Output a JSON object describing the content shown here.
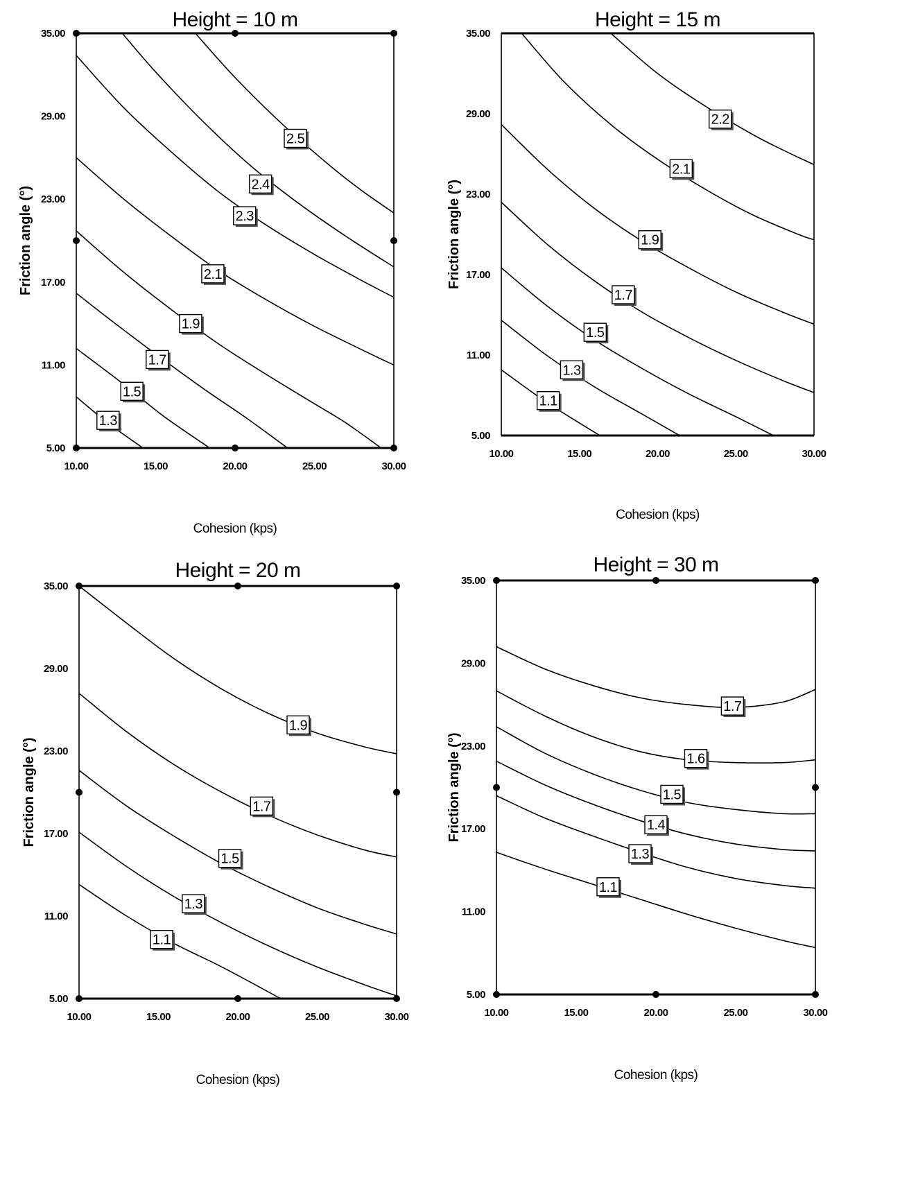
{
  "chart_data": [
    {
      "type": "contour",
      "title": "Height = 10 m",
      "xlabel": "Cohesion (kps)",
      "ylabel": "Friction angle (°)",
      "xlim": [
        10,
        30
      ],
      "ylim": [
        5,
        35
      ],
      "x_ticks": [
        "10.00",
        "15.00",
        "20.00",
        "25.00",
        "30.00"
      ],
      "y_ticks": [
        "5.00",
        "11.00",
        "17.00",
        "23.00",
        "29.00",
        "35.00"
      ],
      "design_points": [
        [
          10,
          35
        ],
        [
          20,
          35
        ],
        [
          30,
          35
        ],
        [
          10,
          20
        ],
        [
          30,
          20
        ],
        [
          10,
          5
        ],
        [
          20,
          5
        ],
        [
          30,
          5
        ]
      ],
      "contours": [
        {
          "label": "1.3",
          "label_at": [
            12.0,
            7.0
          ],
          "points": [
            [
              10,
              8.7
            ],
            [
              12,
              6.8
            ],
            [
              14.2,
              5
            ]
          ]
        },
        {
          "label": "1.5",
          "label_at": [
            13.5,
            9.1
          ],
          "points": [
            [
              10,
              12.2
            ],
            [
              13,
              9.6
            ],
            [
              15.5,
              7.3
            ],
            [
              18.4,
              5
            ]
          ]
        },
        {
          "label": "1.7",
          "label_at": [
            15.1,
            11.4
          ],
          "points": [
            [
              10,
              16.2
            ],
            [
              12,
              14.4
            ],
            [
              15,
              11.8
            ],
            [
              18,
              9.3
            ],
            [
              20.8,
              7.1
            ],
            [
              23.3,
              5
            ]
          ]
        },
        {
          "label": "1.9",
          "label_at": [
            17.2,
            14.0
          ],
          "points": [
            [
              10,
              20.7
            ],
            [
              13,
              17.7
            ],
            [
              16,
              15.0
            ],
            [
              19,
              12.5
            ],
            [
              22,
              10.3
            ],
            [
              25,
              8.2
            ],
            [
              27,
              6.8
            ],
            [
              29.2,
              5
            ]
          ]
        },
        {
          "label": "2.1",
          "label_at": [
            18.6,
            17.6
          ],
          "points": [
            [
              10,
              26.0
            ],
            [
              13,
              23.0
            ],
            [
              16,
              20.3
            ],
            [
              19,
              17.8
            ],
            [
              22,
              15.7
            ],
            [
              25,
              13.8
            ],
            [
              28,
              12.1
            ],
            [
              30,
              11.0
            ]
          ]
        },
        {
          "label": "2.3",
          "label_at": [
            20.6,
            21.8
          ],
          "points": [
            [
              10,
              33.4
            ],
            [
              13,
              29.6
            ],
            [
              16,
              26.4
            ],
            [
              19,
              23.5
            ],
            [
              22,
              21.1
            ],
            [
              25,
              19.0
            ],
            [
              28,
              17.1
            ],
            [
              30,
              15.9
            ]
          ]
        },
        {
          "label": "2.4",
          "label_at": [
            21.6,
            24.1
          ],
          "points": [
            [
              12.9,
              35
            ],
            [
              15,
              32.2
            ],
            [
              18,
              28.6
            ],
            [
              21,
              25.4
            ],
            [
              24,
              22.7
            ],
            [
              27,
              20.3
            ],
            [
              30,
              18.1
            ]
          ]
        },
        {
          "label": "2.5",
          "label_at": [
            23.8,
            27.4
          ],
          "points": [
            [
              17.5,
              35
            ],
            [
              20,
              31.8
            ],
            [
              23,
              28.4
            ],
            [
              26,
              25.4
            ],
            [
              28,
              23.6
            ],
            [
              30,
              22.0
            ]
          ]
        }
      ]
    },
    {
      "type": "contour",
      "title": "Height = 15 m",
      "xlabel": "Cohesion (kps)",
      "ylabel": "Friction angle (°)",
      "xlim": [
        10,
        30
      ],
      "ylim": [
        5,
        35
      ],
      "x_ticks": [
        "10.00",
        "15.00",
        "20.00",
        "25.00",
        "30.00"
      ],
      "y_ticks": [
        "5.00",
        "11.00",
        "17.00",
        "23.00",
        "29.00",
        "35.00"
      ],
      "design_points": [],
      "contours": [
        {
          "label": "1.1",
          "label_at": [
            13.0,
            7.6
          ],
          "points": [
            [
              10,
              9.9
            ],
            [
              13,
              7.4
            ],
            [
              16.3,
              5
            ]
          ]
        },
        {
          "label": "1.3",
          "label_at": [
            14.5,
            9.9
          ],
          "points": [
            [
              10,
              13.6
            ],
            [
              13,
              10.9
            ],
            [
              16,
              8.6
            ],
            [
              19,
              6.6
            ],
            [
              21.4,
              5
            ]
          ]
        },
        {
          "label": "1.5",
          "label_at": [
            16.0,
            12.7
          ],
          "points": [
            [
              10,
              17.5
            ],
            [
              13,
              14.6
            ],
            [
              16,
              12.1
            ],
            [
              19,
              10.0
            ],
            [
              22,
              8.1
            ],
            [
              25,
              6.4
            ],
            [
              27.4,
              5
            ]
          ]
        },
        {
          "label": "1.7",
          "label_at": [
            17.8,
            15.5
          ],
          "points": [
            [
              10,
              22.4
            ],
            [
              13,
              19.2
            ],
            [
              16,
              16.5
            ],
            [
              19,
              14.2
            ],
            [
              22,
              12.3
            ],
            [
              25,
              10.6
            ],
            [
              28,
              9.1
            ],
            [
              30,
              8.2
            ]
          ]
        },
        {
          "label": "1.9",
          "label_at": [
            19.5,
            19.6
          ],
          "points": [
            [
              10,
              28.2
            ],
            [
              13,
              24.8
            ],
            [
              16,
              21.9
            ],
            [
              19,
              19.5
            ],
            [
              22,
              17.5
            ],
            [
              25,
              15.7
            ],
            [
              28,
              14.2
            ],
            [
              30,
              13.3
            ]
          ]
        },
        {
          "label": "2.1",
          "label_at": [
            21.5,
            24.9
          ],
          "points": [
            [
              11.3,
              35
            ],
            [
              14,
              31.4
            ],
            [
              17,
              28.2
            ],
            [
              20,
              25.6
            ],
            [
              23,
              23.4
            ],
            [
              26,
              21.5
            ],
            [
              29,
              20.0
            ],
            [
              30,
              19.6
            ]
          ]
        },
        {
          "label": "2.2",
          "label_at": [
            24.0,
            28.6
          ],
          "points": [
            [
              17.0,
              35
            ],
            [
              20,
              32.0
            ],
            [
              23,
              29.6
            ],
            [
              26,
              27.5
            ],
            [
              28,
              26.3
            ],
            [
              30,
              25.2
            ]
          ]
        }
      ]
    },
    {
      "type": "contour",
      "title": "Height = 20 m",
      "xlabel": "Cohesion (kps)",
      "ylabel": "Friction angle (°)",
      "xlim": [
        10,
        30
      ],
      "ylim": [
        5,
        35
      ],
      "x_ticks": [
        "10.00",
        "15.00",
        "20.00",
        "25.00",
        "30.00"
      ],
      "y_ticks": [
        "5.00",
        "11.00",
        "17.00",
        "23.00",
        "29.00",
        "35.00"
      ],
      "design_points": [
        [
          10,
          35
        ],
        [
          20,
          35
        ],
        [
          30,
          35
        ],
        [
          10,
          20
        ],
        [
          30,
          20
        ],
        [
          10,
          5
        ],
        [
          20,
          5
        ],
        [
          30,
          5
        ]
      ],
      "contours": [
        {
          "label": "1.1",
          "label_at": [
            15.2,
            9.3
          ],
          "points": [
            [
              10,
              13.3
            ],
            [
              13,
              11.0
            ],
            [
              16,
              9.0
            ],
            [
              19,
              7.3
            ],
            [
              22.7,
              5
            ]
          ]
        },
        {
          "label": "1.3",
          "label_at": [
            17.2,
            11.9
          ],
          "points": [
            [
              10,
              17.1
            ],
            [
              13,
              14.6
            ],
            [
              16,
              12.4
            ],
            [
              19,
              10.5
            ],
            [
              22,
              8.8
            ],
            [
              25,
              7.3
            ],
            [
              28,
              6.0
            ],
            [
              30,
              5.2
            ]
          ]
        },
        {
          "label": "1.5",
          "label_at": [
            19.5,
            15.2
          ],
          "points": [
            [
              10,
              21.6
            ],
            [
              13,
              19.0
            ],
            [
              16,
              16.8
            ],
            [
              19,
              14.8
            ],
            [
              22,
              13.1
            ],
            [
              25,
              11.6
            ],
            [
              28,
              10.4
            ],
            [
              30,
              9.7
            ]
          ]
        },
        {
          "label": "1.7",
          "label_at": [
            21.5,
            19.0
          ],
          "points": [
            [
              10,
              27.2
            ],
            [
              13,
              24.4
            ],
            [
              16,
              22.0
            ],
            [
              19,
              20.0
            ],
            [
              22,
              18.3
            ],
            [
              25,
              16.9
            ],
            [
              28,
              15.8
            ],
            [
              30,
              15.3
            ]
          ]
        },
        {
          "label": "1.9",
          "label_at": [
            23.8,
            24.9
          ],
          "points": [
            [
              10,
              35
            ],
            [
              13,
              32.3
            ],
            [
              16,
              29.7
            ],
            [
              19,
              27.5
            ],
            [
              22,
              25.7
            ],
            [
              25,
              24.3
            ],
            [
              28,
              23.3
            ],
            [
              30,
              22.8
            ]
          ]
        }
      ]
    },
    {
      "type": "contour",
      "title": "Height = 30 m",
      "xlabel": "Cohesion (kps)",
      "ylabel": "Friction angle (°)",
      "xlim": [
        10,
        30
      ],
      "ylim": [
        5,
        35
      ],
      "x_ticks": [
        "10.00",
        "15.00",
        "20.00",
        "25.00",
        "30.00"
      ],
      "y_ticks": [
        "5.00",
        "11.00",
        "17.00",
        "23.00",
        "29.00",
        "35.00"
      ],
      "design_points": [
        [
          10,
          35
        ],
        [
          20,
          35
        ],
        [
          30,
          35
        ],
        [
          10,
          20
        ],
        [
          30,
          20
        ],
        [
          10,
          5
        ],
        [
          20,
          5
        ],
        [
          30,
          5
        ]
      ],
      "contours": [
        {
          "label": "1.1",
          "label_at": [
            17.0,
            12.8
          ],
          "points": [
            [
              10,
              15.3
            ],
            [
              13,
              14.1
            ],
            [
              16,
              13.0
            ],
            [
              19,
              11.9
            ],
            [
              22,
              10.8
            ],
            [
              25,
              9.8
            ],
            [
              28,
              8.9
            ],
            [
              30,
              8.4
            ]
          ]
        },
        {
          "label": "1.3",
          "label_at": [
            19.0,
            15.2
          ],
          "points": [
            [
              10,
              19.4
            ],
            [
              13,
              17.8
            ],
            [
              16,
              16.5
            ],
            [
              19,
              15.3
            ],
            [
              22,
              14.2
            ],
            [
              25,
              13.4
            ],
            [
              28,
              12.9
            ],
            [
              30,
              12.7
            ]
          ]
        },
        {
          "label": "1.4",
          "label_at": [
            20.0,
            17.3
          ],
          "points": [
            [
              10,
              21.9
            ],
            [
              13,
              20.2
            ],
            [
              16,
              18.8
            ],
            [
              19,
              17.6
            ],
            [
              22,
              16.6
            ],
            [
              25,
              15.9
            ],
            [
              28,
              15.5
            ],
            [
              30,
              15.4
            ]
          ]
        },
        {
          "label": "1.5",
          "label_at": [
            21.0,
            19.5
          ],
          "points": [
            [
              10,
              24.4
            ],
            [
              13,
              22.5
            ],
            [
              16,
              21.0
            ],
            [
              19,
              19.8
            ],
            [
              22,
              18.9
            ],
            [
              25,
              18.4
            ],
            [
              28,
              18.1
            ],
            [
              30,
              18.1
            ]
          ]
        },
        {
          "label": "1.6",
          "label_at": [
            22.5,
            22.1
          ],
          "points": [
            [
              10,
              27.0
            ],
            [
              13,
              25.2
            ],
            [
              16,
              23.7
            ],
            [
              19,
              22.6
            ],
            [
              22,
              22.0
            ],
            [
              25,
              21.8
            ],
            [
              28,
              21.8
            ],
            [
              30,
              22.0
            ]
          ]
        },
        {
          "label": "1.7",
          "label_at": [
            24.8,
            25.9
          ],
          "points": [
            [
              10,
              30.2
            ],
            [
              13,
              28.6
            ],
            [
              16,
              27.4
            ],
            [
              19,
              26.5
            ],
            [
              22,
              26.0
            ],
            [
              25,
              25.8
            ],
            [
              28,
              26.2
            ],
            [
              30,
              27.1
            ]
          ]
        }
      ]
    }
  ]
}
